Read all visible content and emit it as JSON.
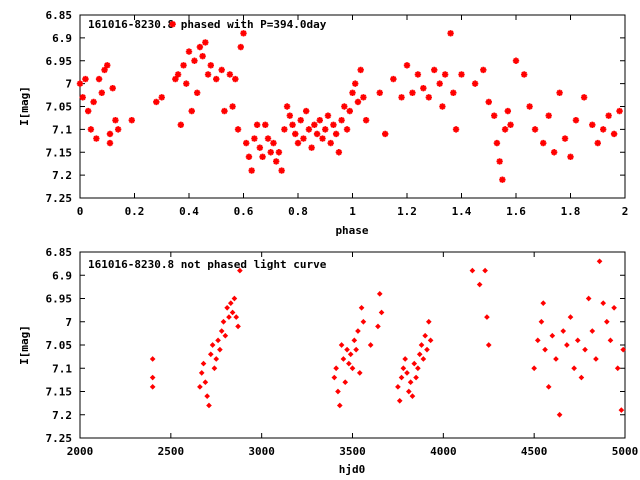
{
  "chart_data": [
    {
      "type": "scatter",
      "title": "161016-8230.8 phased with P=394.0day",
      "xlabel": "phase",
      "ylabel": "I[mag]",
      "xlim": [
        0,
        2
      ],
      "ylim": [
        7.25,
        6.85
      ],
      "y_inverted": true,
      "xticks": [
        "0",
        "0.2",
        "0.4",
        "0.6",
        "0.8",
        "1",
        "1.2",
        "1.4",
        "1.6",
        "1.8",
        "2"
      ],
      "yticks": [
        "6.85",
        "6.9",
        "6.95",
        "7",
        "7.05",
        "7.1",
        "7.15",
        "7.2",
        "7.25"
      ],
      "grid": false,
      "marker": "star",
      "color": "#ff0000",
      "points": [
        [
          0.0,
          7.0
        ],
        [
          0.01,
          7.03
        ],
        [
          0.02,
          6.99
        ],
        [
          0.03,
          7.06
        ],
        [
          0.04,
          7.1
        ],
        [
          0.05,
          7.04
        ],
        [
          0.06,
          7.12
        ],
        [
          0.07,
          6.99
        ],
        [
          0.08,
          7.02
        ],
        [
          0.09,
          6.97
        ],
        [
          0.1,
          6.96
        ],
        [
          0.11,
          7.11
        ],
        [
          0.11,
          7.13
        ],
        [
          0.12,
          7.01
        ],
        [
          0.13,
          7.08
        ],
        [
          0.14,
          7.1
        ],
        [
          0.19,
          7.08
        ],
        [
          0.28,
          7.04
        ],
        [
          0.3,
          7.03
        ],
        [
          0.34,
          6.87
        ],
        [
          0.35,
          6.99
        ],
        [
          0.36,
          6.98
        ],
        [
          0.37,
          7.09
        ],
        [
          0.38,
          6.96
        ],
        [
          0.39,
          7.0
        ],
        [
          0.4,
          6.93
        ],
        [
          0.41,
          7.06
        ],
        [
          0.42,
          6.95
        ],
        [
          0.43,
          7.02
        ],
        [
          0.44,
          6.92
        ],
        [
          0.45,
          6.94
        ],
        [
          0.46,
          6.91
        ],
        [
          0.47,
          6.98
        ],
        [
          0.48,
          6.96
        ],
        [
          0.5,
          6.99
        ],
        [
          0.52,
          6.97
        ],
        [
          0.53,
          7.06
        ],
        [
          0.55,
          6.98
        ],
        [
          0.56,
          7.05
        ],
        [
          0.57,
          6.99
        ],
        [
          0.58,
          7.1
        ],
        [
          0.59,
          6.92
        ],
        [
          0.6,
          6.89
        ],
        [
          0.61,
          7.13
        ],
        [
          0.62,
          7.16
        ],
        [
          0.63,
          7.19
        ],
        [
          0.64,
          7.12
        ],
        [
          0.65,
          7.09
        ],
        [
          0.66,
          7.14
        ],
        [
          0.67,
          7.16
        ],
        [
          0.68,
          7.09
        ],
        [
          0.69,
          7.12
        ],
        [
          0.7,
          7.15
        ],
        [
          0.71,
          7.13
        ],
        [
          0.72,
          7.17
        ],
        [
          0.73,
          7.15
        ],
        [
          0.74,
          7.19
        ],
        [
          0.75,
          7.1
        ],
        [
          0.76,
          7.05
        ],
        [
          0.77,
          7.07
        ],
        [
          0.78,
          7.09
        ],
        [
          0.79,
          7.11
        ],
        [
          0.8,
          7.13
        ],
        [
          0.81,
          7.08
        ],
        [
          0.82,
          7.12
        ],
        [
          0.83,
          7.06
        ],
        [
          0.84,
          7.1
        ],
        [
          0.85,
          7.14
        ],
        [
          0.86,
          7.09
        ],
        [
          0.87,
          7.11
        ],
        [
          0.88,
          7.08
        ],
        [
          0.89,
          7.12
        ],
        [
          0.9,
          7.1
        ],
        [
          0.91,
          7.07
        ],
        [
          0.92,
          7.13
        ],
        [
          0.93,
          7.09
        ],
        [
          0.94,
          7.11
        ],
        [
          0.95,
          7.15
        ],
        [
          0.96,
          7.08
        ],
        [
          0.97,
          7.05
        ],
        [
          0.98,
          7.1
        ],
        [
          0.99,
          7.06
        ],
        [
          1.0,
          7.02
        ],
        [
          1.01,
          7.0
        ],
        [
          1.02,
          7.04
        ],
        [
          1.03,
          6.97
        ],
        [
          1.04,
          7.03
        ],
        [
          1.05,
          7.08
        ],
        [
          1.1,
          7.02
        ],
        [
          1.12,
          7.11
        ],
        [
          1.15,
          6.99
        ],
        [
          1.18,
          7.03
        ],
        [
          1.2,
          6.96
        ],
        [
          1.22,
          7.02
        ],
        [
          1.24,
          6.98
        ],
        [
          1.26,
          7.01
        ],
        [
          1.28,
          7.03
        ],
        [
          1.3,
          6.97
        ],
        [
          1.32,
          7.0
        ],
        [
          1.33,
          7.05
        ],
        [
          1.34,
          6.98
        ],
        [
          1.36,
          6.89
        ],
        [
          1.37,
          7.02
        ],
        [
          1.38,
          7.1
        ],
        [
          1.4,
          6.98
        ],
        [
          1.45,
          7.0
        ],
        [
          1.48,
          6.97
        ],
        [
          1.5,
          7.04
        ],
        [
          1.52,
          7.07
        ],
        [
          1.53,
          7.13
        ],
        [
          1.54,
          7.17
        ],
        [
          1.55,
          7.21
        ],
        [
          1.56,
          7.1
        ],
        [
          1.57,
          7.06
        ],
        [
          1.58,
          7.09
        ],
        [
          1.6,
          6.95
        ],
        [
          1.63,
          6.98
        ],
        [
          1.65,
          7.05
        ],
        [
          1.67,
          7.1
        ],
        [
          1.7,
          7.13
        ],
        [
          1.72,
          7.07
        ],
        [
          1.74,
          7.15
        ],
        [
          1.76,
          7.02
        ],
        [
          1.78,
          7.12
        ],
        [
          1.8,
          7.16
        ],
        [
          1.82,
          7.08
        ],
        [
          1.85,
          7.03
        ],
        [
          1.88,
          7.09
        ],
        [
          1.9,
          7.13
        ],
        [
          1.92,
          7.1
        ],
        [
          1.94,
          7.07
        ],
        [
          1.96,
          7.11
        ],
        [
          1.98,
          7.06
        ]
      ]
    },
    {
      "type": "scatter",
      "title": "161016-8230.8 not phased light curve",
      "xlabel": "hjd0",
      "ylabel": "I[mag]",
      "xlim": [
        2000,
        5000
      ],
      "ylim": [
        7.25,
        6.85
      ],
      "y_inverted": true,
      "xticks": [
        "2000",
        "2500",
        "3000",
        "3500",
        "4000",
        "4500",
        "5000"
      ],
      "yticks": [
        "6.85",
        "6.9",
        "6.95",
        "7",
        "7.05",
        "7.1",
        "7.15",
        "7.2",
        "7.25"
      ],
      "grid": false,
      "marker": "diamond",
      "color": "#ff0000",
      "points": [
        [
          2400,
          7.08
        ],
        [
          2400,
          7.12
        ],
        [
          2400,
          7.14
        ],
        [
          2660,
          7.14
        ],
        [
          2670,
          7.11
        ],
        [
          2680,
          7.09
        ],
        [
          2690,
          7.13
        ],
        [
          2700,
          7.16
        ],
        [
          2710,
          7.18
        ],
        [
          2720,
          7.07
        ],
        [
          2730,
          7.05
        ],
        [
          2740,
          7.1
        ],
        [
          2750,
          7.08
        ],
        [
          2760,
          7.04
        ],
        [
          2770,
          7.06
        ],
        [
          2780,
          7.02
        ],
        [
          2790,
          7.0
        ],
        [
          2800,
          7.03
        ],
        [
          2810,
          6.97
        ],
        [
          2820,
          6.99
        ],
        [
          2830,
          6.96
        ],
        [
          2840,
          6.98
        ],
        [
          2850,
          6.95
        ],
        [
          2860,
          6.99
        ],
        [
          2870,
          7.01
        ],
        [
          2880,
          6.89
        ],
        [
          3400,
          7.12
        ],
        [
          3410,
          7.1
        ],
        [
          3420,
          7.15
        ],
        [
          3430,
          7.18
        ],
        [
          3440,
          7.05
        ],
        [
          3450,
          7.08
        ],
        [
          3460,
          7.13
        ],
        [
          3470,
          7.06
        ],
        [
          3480,
          7.09
        ],
        [
          3490,
          7.07
        ],
        [
          3500,
          7.1
        ],
        [
          3510,
          7.04
        ],
        [
          3520,
          7.06
        ],
        [
          3530,
          7.02
        ],
        [
          3540,
          7.11
        ],
        [
          3550,
          6.97
        ],
        [
          3560,
          7.0
        ],
        [
          3600,
          7.05
        ],
        [
          3640,
          7.01
        ],
        [
          3650,
          6.94
        ],
        [
          3660,
          6.98
        ],
        [
          3750,
          7.14
        ],
        [
          3760,
          7.17
        ],
        [
          3770,
          7.12
        ],
        [
          3780,
          7.1
        ],
        [
          3790,
          7.08
        ],
        [
          3800,
          7.11
        ],
        [
          3810,
          7.15
        ],
        [
          3820,
          7.13
        ],
        [
          3830,
          7.16
        ],
        [
          3840,
          7.09
        ],
        [
          3850,
          7.12
        ],
        [
          3860,
          7.1
        ],
        [
          3870,
          7.07
        ],
        [
          3880,
          7.05
        ],
        [
          3890,
          7.08
        ],
        [
          3900,
          7.03
        ],
        [
          3910,
          7.06
        ],
        [
          3920,
          7.0
        ],
        [
          3930,
          7.04
        ],
        [
          4160,
          6.89
        ],
        [
          4200,
          6.92
        ],
        [
          4230,
          6.89
        ],
        [
          4240,
          6.99
        ],
        [
          4250,
          7.05
        ],
        [
          4500,
          7.1
        ],
        [
          4520,
          7.04
        ],
        [
          4540,
          7.0
        ],
        [
          4550,
          6.96
        ],
        [
          4560,
          7.06
        ],
        [
          4580,
          7.14
        ],
        [
          4600,
          7.03
        ],
        [
          4620,
          7.08
        ],
        [
          4640,
          7.2
        ],
        [
          4660,
          7.02
        ],
        [
          4680,
          7.05
        ],
        [
          4700,
          6.99
        ],
        [
          4720,
          7.1
        ],
        [
          4740,
          7.04
        ],
        [
          4760,
          7.12
        ],
        [
          4780,
          7.06
        ],
        [
          4800,
          6.95
        ],
        [
          4820,
          7.02
        ],
        [
          4840,
          7.08
        ],
        [
          4860,
          6.87
        ],
        [
          4880,
          6.96
        ],
        [
          4900,
          7.0
        ],
        [
          4920,
          7.04
        ],
        [
          4940,
          6.97
        ],
        [
          4960,
          7.1
        ],
        [
          4980,
          7.19
        ],
        [
          4990,
          7.06
        ]
      ]
    }
  ]
}
